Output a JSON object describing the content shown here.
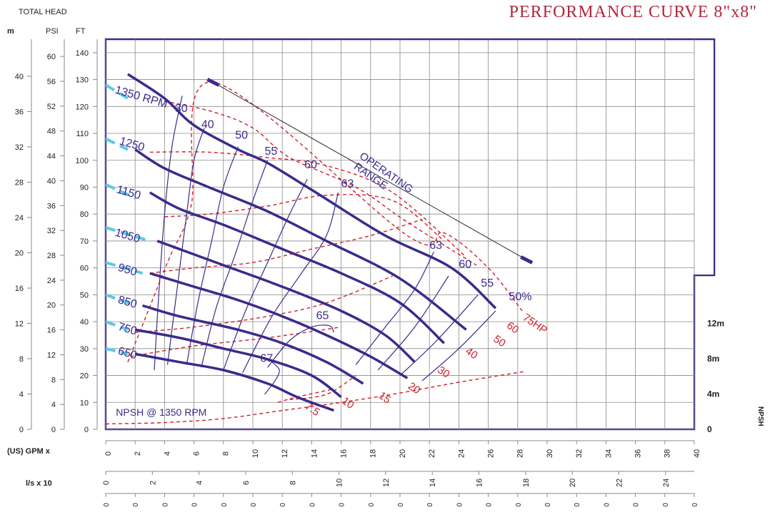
{
  "title": "PERFORMANCE  CURVE 8\"x8\"",
  "left_header": "TOTAL HEAD",
  "colors": {
    "frame": "#3b2a8c",
    "curve": "#3b2a8c",
    "grid": "#8a8a8a",
    "hp": "#d0202a",
    "rpm_extension": "#5cc8e8",
    "axis_text": "#222222"
  },
  "chart_data": {
    "type": "line",
    "xlabel": "(US) GPM  x",
    "x_unit_labels": [
      "(US) GPM  x",
      "l/s    x 10"
    ],
    "xlim": [
      0,
      40
    ],
    "ylim_ft": [
      0,
      145
    ],
    "axes": {
      "m_header": "m",
      "psi_header": "PSI",
      "ft_header": "FT",
      "m_ticks": [
        0,
        4,
        8,
        12,
        16,
        20,
        24,
        28,
        32,
        36,
        40
      ],
      "psi_ticks": [
        0,
        4,
        8,
        12,
        16,
        20,
        24,
        28,
        32,
        36,
        40,
        44,
        48,
        52,
        56,
        60
      ],
      "ft_ticks": [
        0,
        10,
        20,
        30,
        40,
        50,
        60,
        70,
        80,
        90,
        100,
        110,
        120,
        130,
        140
      ],
      "gpm_ticks": [
        0,
        2,
        4,
        6,
        8,
        10,
        12,
        14,
        16,
        18,
        20,
        22,
        24,
        26,
        28,
        30,
        32,
        34,
        36,
        38,
        40
      ],
      "ls_ticks": [
        0,
        2,
        4,
        6,
        8,
        10,
        12,
        14,
        16,
        18,
        20,
        22,
        24
      ],
      "ls_minor_label": "0",
      "npsh_ticks": [
        {
          "label": "0",
          "value": 0
        },
        {
          "label": "4m",
          "value": 13.1
        },
        {
          "label": "8m",
          "value": 26.2
        },
        {
          "label": "12m",
          "value": 39.4
        }
      ],
      "npsh_label": "NPSH"
    },
    "series": [
      {
        "name": "1350 RPM",
        "label_value": [
          5,
          124
        ],
        "points": [
          [
            1.5,
            132
          ],
          [
            4,
            123
          ],
          [
            6,
            113
          ],
          [
            9,
            104
          ],
          [
            11,
            99
          ],
          [
            14,
            89
          ],
          [
            19,
            72
          ],
          [
            23.5,
            60
          ],
          [
            26.5,
            45
          ]
        ],
        "ext": [
          [
            0,
            128
          ],
          [
            1.5,
            123
          ]
        ]
      },
      {
        "name": "1250",
        "label_value": [
          5,
          104
        ],
        "points": [
          [
            2,
            104
          ],
          [
            4,
            97
          ],
          [
            7,
            90
          ],
          [
            11,
            81
          ],
          [
            15,
            70
          ],
          [
            20,
            56
          ],
          [
            24.5,
            37
          ]
        ],
        "ext": [
          [
            0,
            108
          ],
          [
            1.5,
            104
          ]
        ]
      },
      {
        "name": "1150",
        "label_value": [
          5,
          85
        ],
        "points": [
          [
            3,
            88
          ],
          [
            5,
            82
          ],
          [
            8,
            76
          ],
          [
            12,
            67
          ],
          [
            16,
            58
          ],
          [
            20,
            47
          ],
          [
            23,
            32
          ]
        ],
        "ext": [
          [
            0,
            91
          ],
          [
            2,
            86
          ]
        ]
      },
      {
        "name": "1050",
        "label_value": [
          5,
          68
        ],
        "points": [
          [
            3.5,
            70
          ],
          [
            5,
            67
          ],
          [
            8,
            61
          ],
          [
            12,
            53
          ],
          [
            16,
            44
          ],
          [
            19,
            35
          ],
          [
            21,
            25
          ]
        ],
        "ext": [
          [
            0,
            75
          ],
          [
            3,
            70
          ]
        ]
      },
      {
        "name": "950",
        "label_value": [
          5,
          57
        ],
        "points": [
          [
            3,
            58
          ],
          [
            6,
            53
          ],
          [
            9,
            48
          ],
          [
            12,
            42
          ],
          [
            15,
            35
          ],
          [
            18,
            27
          ],
          [
            20.5,
            19
          ]
        ],
        "ext": [
          [
            0,
            62
          ],
          [
            2.5,
            58
          ]
        ]
      },
      {
        "name": "850",
        "label_value": [
          5,
          45
        ],
        "points": [
          [
            2.5,
            46
          ],
          [
            5,
            42
          ],
          [
            9,
            37
          ],
          [
            12,
            32
          ],
          [
            15,
            25
          ],
          [
            17.5,
            17
          ]
        ],
        "ext": [
          [
            0,
            50
          ],
          [
            2,
            46
          ]
        ]
      },
      {
        "name": "750",
        "label_value": [
          5,
          35
        ],
        "points": [
          [
            2,
            37
          ],
          [
            5,
            34
          ],
          [
            8,
            30
          ],
          [
            11,
            26
          ],
          [
            14,
            20
          ],
          [
            16,
            12
          ]
        ],
        "ext": [
          [
            0,
            40
          ],
          [
            1.5,
            37
          ]
        ]
      },
      {
        "name": "650",
        "label_value": [
          5,
          27
        ],
        "points": [
          [
            2,
            28
          ],
          [
            5,
            25
          ],
          [
            8,
            22
          ],
          [
            11,
            17
          ],
          [
            13,
            12
          ],
          [
            15.5,
            7
          ]
        ],
        "ext": [
          [
            0,
            30
          ],
          [
            1.5,
            28
          ]
        ]
      }
    ],
    "rpm_labels": [
      {
        "text": "1350 RPM",
        "x": 0.3,
        "y": 125,
        "rot": 16
      },
      {
        "text": "1250",
        "x": 0.6,
        "y": 106,
        "rot": 16
      },
      {
        "text": "1150",
        "x": 0.4,
        "y": 88,
        "rot": 16
      },
      {
        "text": "1050",
        "x": 0.3,
        "y": 72,
        "rot": 16
      },
      {
        "text": "950",
        "x": 0.5,
        "y": 59,
        "rot": 16
      },
      {
        "text": "850",
        "x": 0.5,
        "y": 47,
        "rot": 16
      },
      {
        "text": "750",
        "x": 0.5,
        "y": 37,
        "rot": 16
      },
      {
        "text": "650",
        "x": 0.5,
        "y": 28,
        "rot": 16
      }
    ],
    "efficiency_curves": [
      {
        "name": "30",
        "label_x": 4.7,
        "label_y": 118,
        "points": [
          [
            3.3,
            22
          ],
          [
            3.6,
            50
          ],
          [
            4,
            80
          ],
          [
            4.5,
            105
          ],
          [
            5.2,
            124
          ]
        ]
      },
      {
        "name": "40",
        "label_x": 6.5,
        "label_y": 112,
        "points": [
          [
            4.2,
            24
          ],
          [
            4.8,
            50
          ],
          [
            5.5,
            80
          ],
          [
            6,
            100
          ],
          [
            6.7,
            112
          ]
        ]
      },
      {
        "name": "50",
        "label_x": 8.8,
        "label_y": 108,
        "points": [
          [
            5.5,
            24
          ],
          [
            6.3,
            48
          ],
          [
            7.2,
            70
          ],
          [
            8,
            90
          ],
          [
            9,
            105
          ]
        ]
      },
      {
        "name": "55",
        "label_x": 10.8,
        "label_y": 102,
        "points": [
          [
            6.5,
            23
          ],
          [
            7.5,
            45
          ],
          [
            8.8,
            65
          ],
          [
            10,
            85
          ],
          [
            11,
            100
          ]
        ]
      },
      {
        "name": "60",
        "label_x": 13.5,
        "label_y": 97,
        "points": [
          [
            8,
            22
          ],
          [
            9.5,
            44
          ],
          [
            11,
            62
          ],
          [
            12.5,
            80
          ],
          [
            13.7,
            93
          ]
        ]
      },
      {
        "name": "63",
        "label_x": 16,
        "label_y": 90,
        "points": [
          [
            9.3,
            21
          ],
          [
            11.3,
            42
          ],
          [
            13.3,
            58
          ],
          [
            15,
            72
          ],
          [
            15.8,
            88
          ]
        ]
      },
      {
        "name": "65",
        "label_x": 14.3,
        "label_y": 41,
        "points": [
          [
            11,
            23
          ],
          [
            12.5,
            33
          ],
          [
            14,
            38
          ],
          [
            15.2,
            38.5
          ],
          [
            15.5,
            36
          ]
        ]
      },
      {
        "name": "67",
        "label_x": 10.5,
        "label_y": 25,
        "points": [
          [
            10.8,
            13
          ],
          [
            11.5,
            18
          ],
          [
            11.8,
            22
          ],
          [
            11.3,
            25
          ]
        ]
      },
      {
        "name": "63",
        "label_x": 22,
        "label_y": 67,
        "points": [
          [
            17,
            24
          ],
          [
            19,
            38
          ],
          [
            21,
            52
          ],
          [
            22.3,
            66
          ]
        ]
      },
      {
        "name": "60",
        "label_x": 24,
        "label_y": 60,
        "points": [
          [
            18.5,
            22
          ],
          [
            21,
            38
          ],
          [
            23.3,
            57
          ]
        ]
      },
      {
        "name": "55",
        "label_x": 25.5,
        "label_y": 53,
        "points": [
          [
            20,
            20
          ],
          [
            22.5,
            33
          ],
          [
            25.3,
            50
          ]
        ]
      },
      {
        "name": "50%",
        "label_x": 27.4,
        "label_y": 48,
        "points": [
          [
            21.5,
            18
          ],
          [
            24,
            30
          ],
          [
            26.5,
            44
          ]
        ]
      }
    ],
    "hp_curves": [
      {
        "name": "7.5",
        "label_x": 13.5,
        "label_y": 8,
        "points": [
          [
            11.7,
            10
          ],
          [
            13,
            12
          ],
          [
            15.5,
            15
          ]
        ]
      },
      {
        "name": "10",
        "label_x": 16,
        "label_y": 10,
        "points": [
          [
            12.5,
            11
          ],
          [
            15,
            13
          ],
          [
            17,
            20
          ]
        ]
      },
      {
        "name": "15",
        "label_x": 18.5,
        "label_y": 12,
        "points": [
          [
            1.7,
            27
          ],
          [
            6,
            31
          ],
          [
            11,
            34
          ],
          [
            16,
            38
          ]
        ]
      },
      {
        "name": "20",
        "label_x": 20.5,
        "label_y": 15.5,
        "points": [
          [
            2,
            36
          ],
          [
            6,
            38
          ],
          [
            11,
            42
          ],
          [
            15,
            47
          ],
          [
            19.5,
            57
          ]
        ]
      },
      {
        "name": "30",
        "label_x": 22.5,
        "label_y": 21.5,
        "points": [
          [
            3,
            58
          ],
          [
            6,
            60
          ],
          [
            10,
            62
          ],
          [
            14,
            67
          ],
          [
            18,
            72
          ],
          [
            21.5,
            78
          ]
        ]
      },
      {
        "name": "40",
        "label_x": 24.4,
        "label_y": 28.5,
        "points": [
          [
            4,
            79
          ],
          [
            7,
            80
          ],
          [
            11,
            83
          ],
          [
            15,
            87
          ],
          [
            19.5,
            85
          ],
          [
            23,
            70
          ]
        ]
      },
      {
        "name": "50",
        "label_x": 26.3,
        "label_y": 33,
        "points": [
          [
            3,
            103
          ],
          [
            7,
            103
          ],
          [
            11,
            101
          ],
          [
            15,
            98
          ],
          [
            19.5,
            88
          ],
          [
            24.5,
            64
          ]
        ]
      },
      {
        "name": "60",
        "label_x": 27.2,
        "label_y": 38,
        "points": [
          [
            4,
            122
          ],
          [
            7.3,
            118
          ],
          [
            10,
            112
          ],
          [
            12.5,
            101
          ],
          [
            17,
            90
          ],
          [
            20.5,
            77
          ],
          [
            25.2,
            61
          ]
        ]
      },
      {
        "name": "75HP",
        "label_x": 28.3,
        "label_y": 41,
        "points": [
          [
            1.5,
            25
          ],
          [
            4.2,
            62
          ],
          [
            5.8,
            83
          ],
          [
            7.3,
            129
          ],
          [
            20.5,
            72
          ],
          [
            23,
            73
          ],
          [
            26,
            60
          ],
          [
            28.3,
            44
          ]
        ]
      }
    ],
    "npsh_curve": {
      "label": "NPSH @ 1350 RPM",
      "label_x": 0.5,
      "label_y": 5,
      "points": [
        [
          0,
          2
        ],
        [
          4,
          2.5
        ],
        [
          8,
          4
        ],
        [
          12,
          7
        ],
        [
          16,
          10
        ],
        [
          20,
          13.5
        ],
        [
          24,
          17.5
        ],
        [
          28.5,
          21.5
        ]
      ]
    },
    "operating_range": {
      "label": "OPERATING\nRANGE",
      "label_x": 17.2,
      "label_y": 101,
      "rot": 35,
      "start": [
        7.3,
        129
      ],
      "end": [
        28.6,
        63
      ]
    }
  }
}
